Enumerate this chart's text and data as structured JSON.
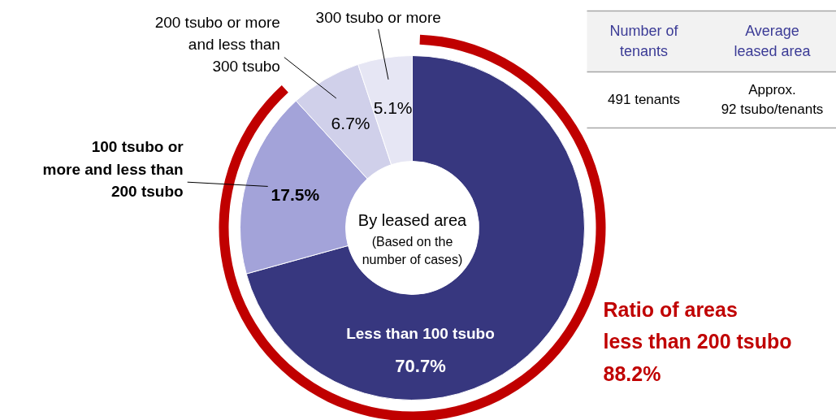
{
  "chart_data": {
    "type": "donut",
    "title": "By leased area",
    "subtitle": "(Based on the\nnumber of cases)",
    "categories": [
      "Less than 100 tsubo",
      "100 tsubo or\nmore and less than\n200 tsubo",
      "200 tsubo or more\nand less than\n300 tsubo",
      "300 tsubo or more"
    ],
    "values": [
      70.7,
      17.5,
      6.7,
      5.1
    ],
    "value_labels": [
      "70.7%",
      "17.5%",
      "6.7%",
      "5.1%"
    ],
    "colors": [
      "#37377f",
      "#a3a3d9",
      "#d0d0ea",
      "#e6e6f4"
    ],
    "annotations": [
      "Number of\ntenants",
      "Average\nleased area",
      "491 tenants",
      "Approx.\n92 tsubo/tenants",
      "Ratio of areas\nless than 200 tsubo\n88.2%"
    ]
  }
}
